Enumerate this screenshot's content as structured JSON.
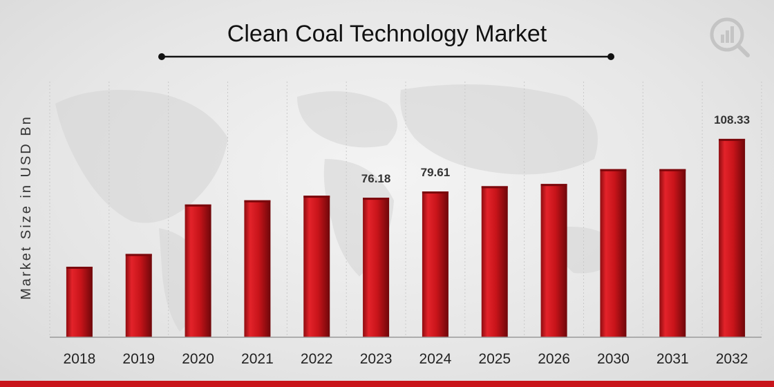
{
  "chart_data": {
    "type": "bar",
    "title": "Clean Coal Technology Market",
    "ylabel": "Market Size in USD Bn",
    "xlabel": "",
    "categories": [
      "2018",
      "2019",
      "2020",
      "2021",
      "2022",
      "2023",
      "2024",
      "2025",
      "2026",
      "2030",
      "2031",
      "2032"
    ],
    "values": [
      38.5,
      45.5,
      72.5,
      74.8,
      77.3,
      76.18,
      79.61,
      82.5,
      83.7,
      91.8,
      91.8,
      108.33
    ],
    "data_labels": {
      "5": "76.18",
      "6": "79.61",
      "11": "108.33"
    },
    "bar_color": "#c8141a",
    "grid": true,
    "legend": "none"
  },
  "colors": {
    "accent": "#c8141a"
  },
  "logo": {
    "icon": "analytics-logo-icon"
  }
}
